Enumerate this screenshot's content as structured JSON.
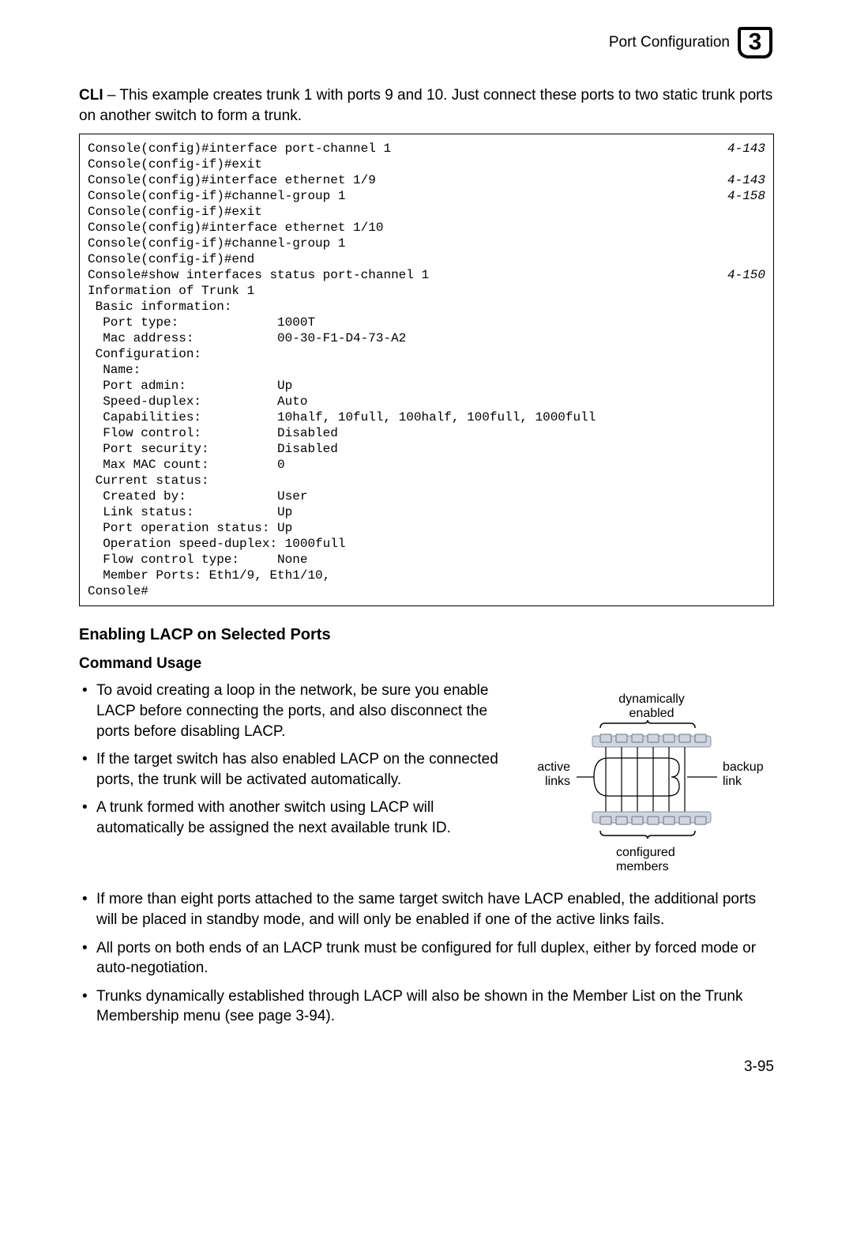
{
  "header": {
    "title": "Port Configuration",
    "chapter": "3"
  },
  "intro": {
    "label": "CLI",
    "text": " – This example creates trunk 1 with ports 9 and 10. Just connect these ports to two static trunk ports on another switch to form a trunk."
  },
  "code": {
    "lines": [
      {
        "t": "Console(config)#interface port-channel 1",
        "r": "4-143"
      },
      {
        "t": "Console(config-if)#exit",
        "r": ""
      },
      {
        "t": "Console(config)#interface ethernet 1/9",
        "r": "4-143"
      },
      {
        "t": "Console(config-if)#channel-group 1",
        "r": "4-158"
      },
      {
        "t": "Console(config-if)#exit",
        "r": ""
      },
      {
        "t": "Console(config)#interface ethernet 1/10",
        "r": ""
      },
      {
        "t": "Console(config-if)#channel-group 1",
        "r": ""
      },
      {
        "t": "Console(config-if)#end",
        "r": ""
      },
      {
        "t": "Console#show interfaces status port-channel 1",
        "r": "4-150"
      },
      {
        "t": "Information of Trunk 1",
        "r": ""
      },
      {
        "t": " Basic information:",
        "r": ""
      },
      {
        "t": "  Port type:             1000T",
        "r": ""
      },
      {
        "t": "  Mac address:           00-30-F1-D4-73-A2",
        "r": ""
      },
      {
        "t": " Configuration:",
        "r": ""
      },
      {
        "t": "  Name:",
        "r": ""
      },
      {
        "t": "  Port admin:            Up",
        "r": ""
      },
      {
        "t": "  Speed-duplex:          Auto",
        "r": ""
      },
      {
        "t": "  Capabilities:          10half, 10full, 100half, 100full, 1000full",
        "r": ""
      },
      {
        "t": "  Flow control:          Disabled",
        "r": ""
      },
      {
        "t": "  Port security:         Disabled",
        "r": ""
      },
      {
        "t": "  Max MAC count:         0",
        "r": ""
      },
      {
        "t": " Current status:",
        "r": ""
      },
      {
        "t": "  Created by:            User",
        "r": ""
      },
      {
        "t": "  Link status:           Up",
        "r": ""
      },
      {
        "t": "  Port operation status: Up",
        "r": ""
      },
      {
        "t": "  Operation speed-duplex: 1000full",
        "r": ""
      },
      {
        "t": "  Flow control type:     None",
        "r": ""
      },
      {
        "t": "  Member Ports: Eth1/9, Eth1/10,",
        "r": ""
      },
      {
        "t": "Console#",
        "r": ""
      }
    ]
  },
  "section": {
    "heading": "Enabling LACP on Selected Ports",
    "subheading": "Command Usage"
  },
  "bullets_left": [
    "To avoid creating a loop in the network, be sure you enable LACP before connecting the ports, and also disconnect the ports before disabling LACP.",
    "If the target switch has also enabled LACP on the connected ports, the trunk will be activated automatically.",
    "A trunk formed with another switch using LACP will automatically be assigned the next available trunk ID."
  ],
  "bullets_full": [
    "If more than eight ports attached to the same target switch have LACP enabled, the additional ports will be placed in standby mode, and will only be enabled if one of the active links fails.",
    "All ports on both ends of an LACP trunk must be configured for full duplex, either by forced mode or auto-negotiation.",
    "Trunks dynamically established through LACP will also be shown in the Member List on the Trunk Membership menu (see page 3-94)."
  ],
  "diagram": {
    "labels": {
      "top": "dynamically enabled",
      "left": "active links",
      "right": "backup link",
      "bottom": "configured members"
    },
    "colors": {
      "switch_fill": "#d0d6e0",
      "port_stroke": "#6b7280",
      "line": "#000000",
      "text": "#000000"
    }
  },
  "page_number": "3-95"
}
